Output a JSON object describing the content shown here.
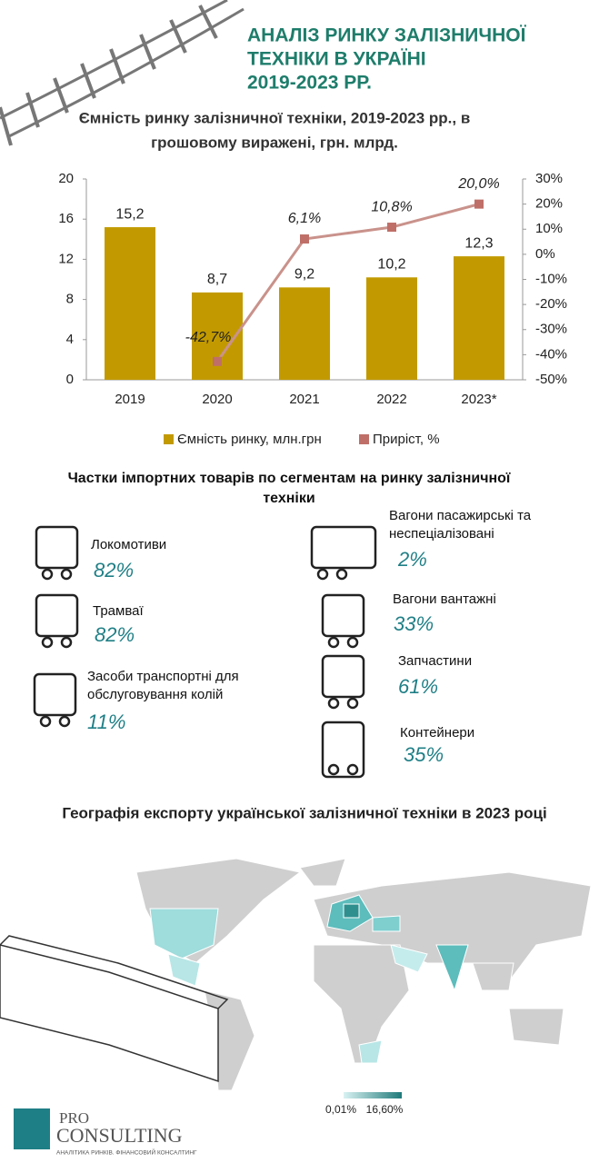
{
  "header": {
    "title": [
      "АНАЛІЗ РИНКУ ЗАЛІЗНИЧНОЇ",
      "ТЕХНІКИ В УКРАЇНІ",
      "2019-2023 РР."
    ]
  },
  "chart_data": {
    "type": "bar",
    "title": [
      "Ємність ринку залізничної техніки, 2019-2023 рр., в",
      "грошовому виражені, грн. млрд."
    ],
    "categories": [
      "2019",
      "2020",
      "2021",
      "2022",
      "2023*"
    ],
    "series": [
      {
        "name": "Ємність ринку, млн.грн",
        "color": "#c29a00",
        "values": [
          15.2,
          8.7,
          9.2,
          10.2,
          12.3
        ],
        "value_labels": [
          "15,2",
          "8,7",
          "9,2",
          "10,2",
          "12,3"
        ]
      },
      {
        "name": "Приріст, %",
        "type": "line",
        "axis": "y2",
        "color": "#c9928b",
        "marker_color": "#bf6f68",
        "values": [
          null,
          -42.7,
          6.1,
          10.8,
          20.0
        ],
        "value_labels": [
          null,
          "-42,7%",
          "6,1%",
          "10,8%",
          "20,0%"
        ]
      }
    ],
    "ylim": [
      0,
      20
    ],
    "yticks": [
      0,
      4,
      8,
      12,
      16,
      20
    ],
    "y2lim": [
      -50,
      30
    ],
    "y2ticks": [
      {
        "value": -50,
        "label": "-50%"
      },
      {
        "value": -40,
        "label": "-40%"
      },
      {
        "value": -30,
        "label": "-30%"
      },
      {
        "value": -20,
        "label": "-20%"
      },
      {
        "value": -10,
        "label": "-10%"
      },
      {
        "value": 0,
        "label": "0%"
      },
      {
        "value": 10,
        "label": "10%"
      },
      {
        "value": 20,
        "label": "20%"
      },
      {
        "value": 30,
        "label": "30%"
      }
    ],
    "grid": false,
    "legend": "bottom"
  },
  "segments": {
    "title": [
      "Частки імпортних товарів по сегментам на ринку залізничної",
      "техніки"
    ],
    "items": [
      {
        "label": [
          "Локомотиви"
        ],
        "share": "82%"
      },
      {
        "label": [
          "Трамваї"
        ],
        "share": "82%"
      },
      {
        "label": [
          "Засоби транспортні для",
          "обслуговування колій"
        ],
        "share": "11%"
      },
      {
        "label": [
          "Вагони пасажирські та",
          "неспеціалізовані"
        ],
        "share": "2%"
      },
      {
        "label": [
          "Вагони вантажні"
        ],
        "share": "33%"
      },
      {
        "label": [
          "Запчастини"
        ],
        "share": "61%"
      },
      {
        "label": [
          "Контейнери"
        ],
        "share": "35%"
      }
    ]
  },
  "map": {
    "title": "Географія експорту української залізничної техніки в 2023 році",
    "legend_min": "0,01%",
    "legend_max": "16,60%"
  },
  "logo": {
    "name_top": "PRO",
    "name_bottom": "CONSULTING",
    "tagline": "АНАЛІТИКА РИНКІВ. ФІНАНСОВИЙ КОНСАЛТИНГ"
  }
}
